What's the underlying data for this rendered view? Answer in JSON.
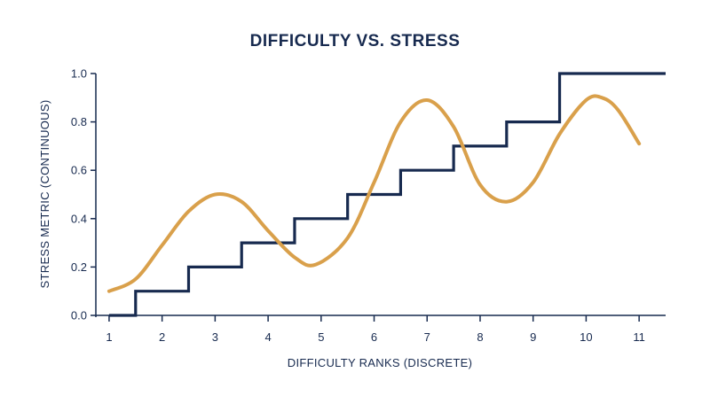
{
  "chart_data": {
    "type": "line",
    "title": "DIFFICULTY VS. STRESS",
    "xlabel": "DIFFICULTY RANKS (DISCRETE)",
    "ylabel": "STRESS METRIC (CONTINUOUS)",
    "xlim": [
      0.75,
      11.5
    ],
    "ylim": [
      0,
      1.0
    ],
    "x_ticks": [
      1,
      2,
      3,
      4,
      5,
      6,
      7,
      8,
      9,
      10,
      11
    ],
    "y_ticks": [
      0.0,
      0.2,
      0.4,
      0.6,
      0.8,
      1.0
    ],
    "y_tick_labels": [
      "0.0",
      "0.2",
      "0.4",
      "0.6",
      "0.8",
      "1.0"
    ],
    "grid": false,
    "legend": "none",
    "series": [
      {
        "type": "step",
        "color": "#172a4f",
        "x": [
          1,
          1.5,
          1.5,
          2.5,
          2.5,
          3.5,
          3.5,
          4.5,
          4.5,
          5.5,
          5.5,
          6.5,
          6.5,
          7.5,
          7.5,
          8.5,
          8.5,
          9.5,
          9.5,
          11.5
        ],
        "y": [
          0.0,
          0.0,
          0.1,
          0.1,
          0.2,
          0.2,
          0.3,
          0.3,
          0.4,
          0.4,
          0.5,
          0.5,
          0.6,
          0.6,
          0.7,
          0.7,
          0.8,
          0.8,
          1.0,
          1.0
        ]
      },
      {
        "type": "smooth",
        "color": "#d9a04b",
        "x": [
          1.0,
          1.5,
          2.0,
          2.5,
          3.0,
          3.5,
          4.0,
          4.5,
          4.9,
          5.5,
          6.0,
          6.5,
          7.0,
          7.5,
          8.0,
          8.5,
          9.0,
          9.5,
          10.0,
          10.3,
          10.6,
          11.0
        ],
        "y": [
          0.1,
          0.15,
          0.29,
          0.43,
          0.5,
          0.47,
          0.35,
          0.24,
          0.21,
          0.32,
          0.55,
          0.8,
          0.89,
          0.78,
          0.54,
          0.47,
          0.55,
          0.75,
          0.89,
          0.9,
          0.85,
          0.71
        ]
      }
    ]
  }
}
